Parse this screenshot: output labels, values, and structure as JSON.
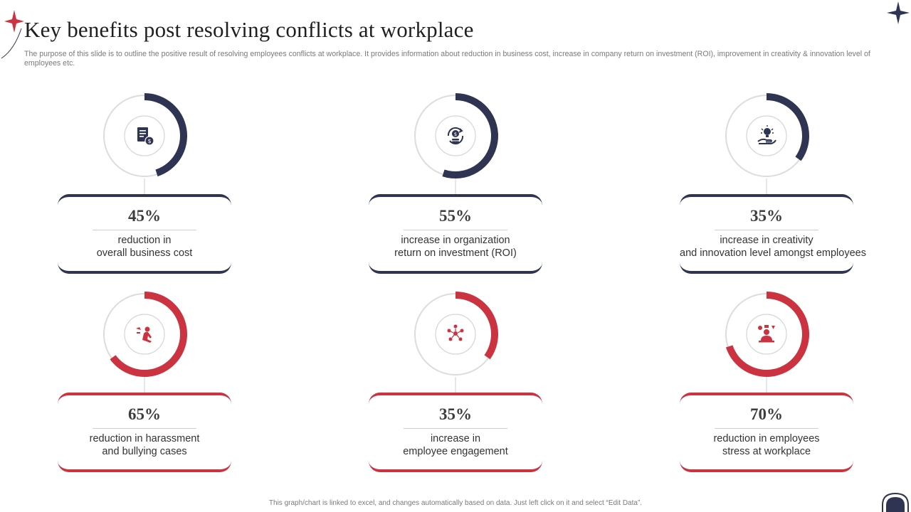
{
  "header": {
    "title": "Key benefits post resolving conflicts at workplace",
    "description": "The purpose of this slide is to outline the positive result of resolving employees conflicts at workplace. It provides information about reduction in business cost, increase in company return on investment (ROI),  improvement in creativity  & innovation level of employees etc."
  },
  "footer": {
    "note": "This graph/chart is linked to excel, and changes automatically based on data. Just left click on it and select “Edit Data”."
  },
  "colors": {
    "navy": "#2e3452",
    "red": "#cb3340",
    "track": "#dcdcdc"
  },
  "cards": [
    {
      "value_label": "45%",
      "line1": "reduction in",
      "line2": "overall business cost"
    },
    {
      "value_label": "55%",
      "line1": "increase in organization",
      "line2": "return on investment (ROI)"
    },
    {
      "value_label": "35%",
      "line1": "increase in creativity",
      "line2": "and innovation  level  amongst employees"
    },
    {
      "value_label": "65%",
      "line1": "reduction in harassment",
      "line2": "and bullying cases"
    },
    {
      "value_label": "35%",
      "line1": "increase in",
      "line2": "employee engagement"
    },
    {
      "value_label": "70%",
      "line1": "reduction in employees",
      "line2": "stress at workplace"
    }
  ],
  "chart_data": {
    "type": "pie",
    "variant": "donut",
    "series": [
      {
        "value": 45,
        "color": "#2e3452",
        "icon": "document-cost-icon"
      },
      {
        "value": 55,
        "color": "#2e3452",
        "icon": "money-cycle-icon"
      },
      {
        "value": 35,
        "color": "#2e3452",
        "icon": "idea-hand-icon"
      },
      {
        "value": 65,
        "color": "#cb3340",
        "icon": "harassment-icon"
      },
      {
        "value": 35,
        "color": "#cb3340",
        "icon": "team-network-icon"
      },
      {
        "value": 70,
        "color": "#cb3340",
        "icon": "stressed-person-icon"
      }
    ]
  }
}
